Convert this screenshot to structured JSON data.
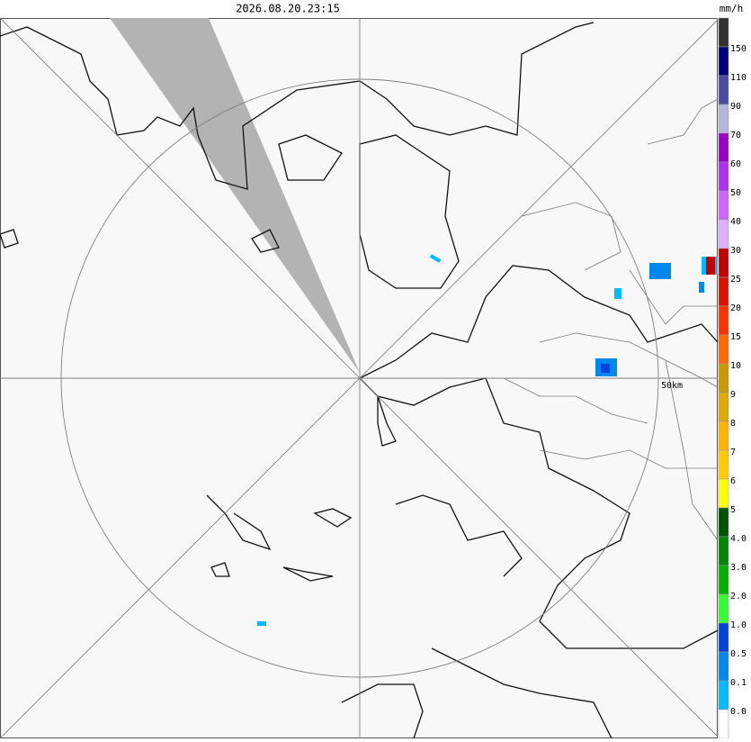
{
  "header": {
    "timestamp": "2026.08.20.23:15"
  },
  "map": {
    "range_label": "50km"
  },
  "legend": {
    "unit": "mm/h",
    "labels": [
      "150",
      "110",
      "90",
      "70",
      "60",
      "50",
      "40",
      "30",
      "25",
      "20",
      "15",
      "10",
      "9",
      "8",
      "7",
      "6",
      "5",
      "4.0",
      "3.0",
      "2.0",
      "1.0",
      "0.5",
      "0.1",
      "0.0"
    ],
    "colors": [
      "#333333",
      "#000080",
      "#4b4ba8",
      "#b4b4dc",
      "#9a00cc",
      "#b030f0",
      "#cc66ff",
      "#ddb0ff",
      "#c40000",
      "#dd1100",
      "#ff3300",
      "#ff6a00",
      "#c89a00",
      "#e0aa00",
      "#ffb400",
      "#ffcc00",
      "#ffff00",
      "#005500",
      "#008800",
      "#00b000",
      "#33ff33",
      "#0044dd",
      "#0088ee",
      "#00bbff",
      "#ffffff"
    ]
  }
}
